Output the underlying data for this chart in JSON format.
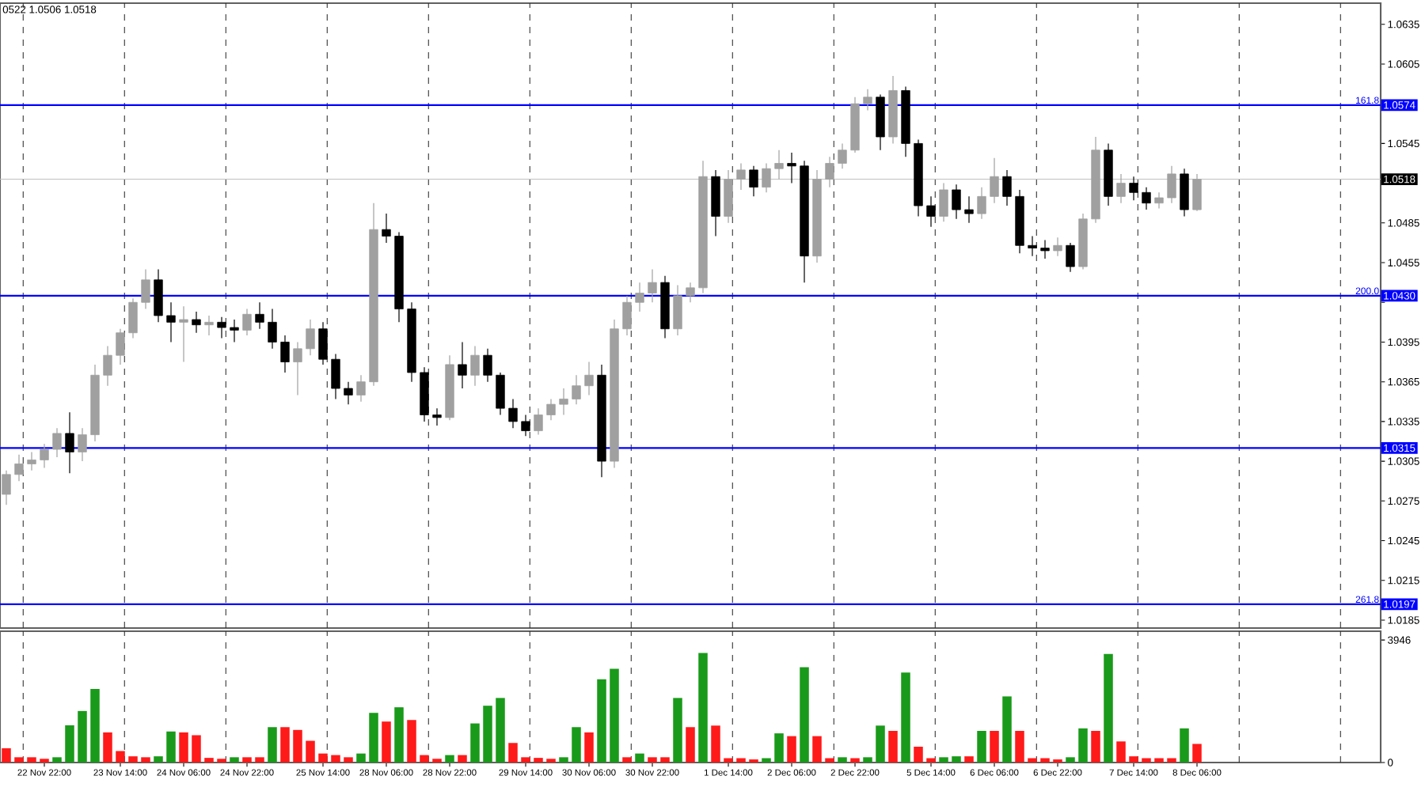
{
  "chart_data": [
    {
      "type": "candlestick",
      "categories": [
        null,
        null,
        null,
        null,
        null,
        null,
        null,
        null,
        null,
        null,
        null,
        null,
        null,
        null,
        null,
        null,
        null,
        null,
        null,
        null,
        null,
        null,
        null,
        null,
        null,
        null,
        null,
        null,
        null,
        null,
        null,
        null,
        null,
        null,
        null,
        null,
        null,
        null,
        null,
        null,
        null,
        null,
        null,
        null,
        null,
        null,
        null,
        null,
        null,
        null,
        null,
        null,
        null,
        null,
        null,
        null,
        null,
        null,
        null,
        null,
        null,
        null,
        null,
        null,
        null,
        null,
        null,
        null,
        null,
        null,
        null,
        null,
        null,
        null,
        null,
        null,
        null,
        null,
        null,
        null,
        null,
        null,
        null,
        null,
        null,
        null,
        null,
        null,
        null,
        null,
        null,
        null,
        null,
        null,
        null,
        null,
        null,
        null,
        null,
        null,
        null,
        null,
        null,
        null,
        null,
        null,
        null,
        null,
        null
      ],
      "ohlc": [
        [
          1.028,
          1.0298,
          1.0272,
          1.0295
        ],
        [
          1.0295,
          1.031,
          1.029,
          1.0303
        ],
        [
          1.0303,
          1.0312,
          1.0298,
          1.0306
        ],
        [
          1.0306,
          1.0318,
          1.03,
          1.0314
        ],
        [
          1.0314,
          1.033,
          1.0308,
          1.0326
        ],
        [
          1.0326,
          1.0342,
          1.0296,
          1.0312
        ],
        [
          1.0312,
          1.033,
          1.0305,
          1.0325
        ],
        [
          1.0325,
          1.0378,
          1.032,
          1.037
        ],
        [
          1.037,
          1.0392,
          1.0362,
          1.0385
        ],
        [
          1.0385,
          1.0405,
          1.0378,
          1.0402
        ],
        [
          1.0402,
          1.0428,
          1.0398,
          1.0425
        ],
        [
          1.0425,
          1.045,
          1.042,
          1.0442
        ],
        [
          1.0442,
          1.045,
          1.041,
          1.0415
        ],
        [
          1.0415,
          1.0425,
          1.0395,
          1.041
        ],
        [
          1.041,
          1.0422,
          1.038,
          1.0412
        ],
        [
          1.0412,
          1.0418,
          1.0402,
          1.0408
        ],
        [
          1.0408,
          1.0415,
          1.04,
          1.041
        ],
        [
          1.041,
          1.0414,
          1.0398,
          1.0406
        ],
        [
          1.0406,
          1.0412,
          1.0395,
          1.0404
        ],
        [
          1.0404,
          1.042,
          1.04,
          1.0416
        ],
        [
          1.0416,
          1.0425,
          1.0405,
          1.041
        ],
        [
          1.041,
          1.042,
          1.039,
          1.0395
        ],
        [
          1.0395,
          1.04,
          1.0372,
          1.038
        ],
        [
          1.038,
          1.0395,
          1.0355,
          1.039
        ],
        [
          1.039,
          1.0412,
          1.0385,
          1.0405
        ],
        [
          1.0405,
          1.041,
          1.0378,
          1.0382
        ],
        [
          1.0382,
          1.0386,
          1.0352,
          1.036
        ],
        [
          1.036,
          1.0365,
          1.0348,
          1.0355
        ],
        [
          1.0355,
          1.037,
          1.035,
          1.0365
        ],
        [
          1.0365,
          1.05,
          1.0362,
          1.048
        ],
        [
          1.048,
          1.0492,
          1.047,
          1.0475
        ],
        [
          1.0475,
          1.0478,
          1.041,
          1.042
        ],
        [
          1.042,
          1.0425,
          1.0365,
          1.0372
        ],
        [
          1.0372,
          1.0376,
          1.0335,
          1.034
        ],
        [
          1.034,
          1.0345,
          1.0332,
          1.0338
        ],
        [
          1.0338,
          1.0385,
          1.0336,
          1.0378
        ],
        [
          1.0378,
          1.0395,
          1.036,
          1.037
        ],
        [
          1.037,
          1.0392,
          1.0362,
          1.0385
        ],
        [
          1.0385,
          1.039,
          1.0365,
          1.037
        ],
        [
          1.037,
          1.0372,
          1.034,
          1.0345
        ],
        [
          1.0345,
          1.0352,
          1.033,
          1.0335
        ],
        [
          1.0335,
          1.034,
          1.0324,
          1.0328
        ],
        [
          1.0328,
          1.0345,
          1.0325,
          1.034
        ],
        [
          1.034,
          1.0352,
          1.0336,
          1.0348
        ],
        [
          1.0348,
          1.036,
          1.034,
          1.0352
        ],
        [
          1.0352,
          1.037,
          1.0348,
          1.0362
        ],
        [
          1.0362,
          1.038,
          1.0355,
          1.037
        ],
        [
          1.037,
          1.0378,
          1.0293,
          1.0305
        ],
        [
          1.0305,
          1.0412,
          1.03,
          1.0405
        ],
        [
          1.0405,
          1.043,
          1.04,
          1.0425
        ],
        [
          1.0425,
          1.044,
          1.0418,
          1.0432
        ],
        [
          1.0432,
          1.045,
          1.0425,
          1.044
        ],
        [
          1.044,
          1.0445,
          1.0398,
          1.0405
        ],
        [
          1.0405,
          1.0438,
          1.04,
          1.043
        ],
        [
          1.043,
          1.044,
          1.0425,
          1.0436
        ],
        [
          1.0436,
          1.0532,
          1.0432,
          1.052
        ],
        [
          1.052,
          1.0525,
          1.0475,
          1.049
        ],
        [
          1.049,
          1.0525,
          1.0485,
          1.0518
        ],
        [
          1.0518,
          1.053,
          1.051,
          1.0525
        ],
        [
          1.0525,
          1.0528,
          1.0505,
          1.0512
        ],
        [
          1.0512,
          1.053,
          1.0508,
          1.0526
        ],
        [
          1.0526,
          1.054,
          1.0518,
          1.053
        ],
        [
          1.053,
          1.0538,
          1.0515,
          1.0528
        ],
        [
          1.0528,
          1.0532,
          1.044,
          1.046
        ],
        [
          1.046,
          1.0525,
          1.0455,
          1.0518
        ],
        [
          1.0518,
          1.0535,
          1.0512,
          1.053
        ],
        [
          1.053,
          1.0545,
          1.0526,
          1.054
        ],
        [
          1.054,
          1.058,
          1.0538,
          1.0575
        ],
        [
          1.0575,
          1.0586,
          1.057,
          1.058
        ],
        [
          1.058,
          1.0582,
          1.054,
          1.055
        ],
        [
          1.055,
          1.0596,
          1.0545,
          1.0585
        ],
        [
          1.0585,
          1.0588,
          1.0535,
          1.0545
        ],
        [
          1.0545,
          1.0548,
          1.049,
          1.0498
        ],
        [
          1.0498,
          1.0505,
          1.0482,
          1.049
        ],
        [
          1.049,
          1.0515,
          1.0486,
          1.051
        ],
        [
          1.051,
          1.0514,
          1.0488,
          1.0495
        ],
        [
          1.0495,
          1.0505,
          1.0485,
          1.0492
        ],
        [
          1.0492,
          1.0512,
          1.0488,
          1.0505
        ],
        [
          1.0505,
          1.0534,
          1.05,
          1.052
        ],
        [
          1.052,
          1.0525,
          1.0498,
          1.0505
        ],
        [
          1.0505,
          1.051,
          1.0462,
          1.0468
        ],
        [
          1.0468,
          1.0475,
          1.046,
          1.0466
        ],
        [
          1.0466,
          1.0472,
          1.0458,
          1.0464
        ],
        [
          1.0464,
          1.0474,
          1.046,
          1.0468
        ],
        [
          1.0468,
          1.047,
          1.0448,
          1.0452
        ],
        [
          1.0452,
          1.0492,
          1.045,
          1.0488
        ],
        [
          1.0488,
          1.055,
          1.0485,
          1.054
        ],
        [
          1.054,
          1.0545,
          1.0498,
          1.0505
        ],
        [
          1.0505,
          1.0522,
          1.05,
          1.0515
        ],
        [
          1.0515,
          1.052,
          1.0502,
          1.0508
        ],
        [
          1.0508,
          1.0512,
          1.0495,
          1.05
        ],
        [
          1.05,
          1.0508,
          1.0496,
          1.0504
        ],
        [
          1.0504,
          1.0528,
          1.05,
          1.0522
        ],
        [
          1.0522,
          1.0526,
          1.049,
          1.0495
        ],
        [
          1.0495,
          1.0522,
          1.0494,
          1.0518
        ],
        null,
        null,
        null,
        null,
        null,
        null,
        null,
        null,
        null,
        null,
        null,
        null,
        null,
        null
      ],
      "ylim": [
        1.0179,
        1.0651
      ],
      "yticks": [
        1.0185,
        1.0215,
        1.0245,
        1.0275,
        1.0305,
        1.0335,
        1.0365,
        1.0395,
        {
          "value": 1.0425,
          "label": null
        },
        1.0455,
        1.0485,
        {
          "value": 1.0515,
          "label": null
        },
        1.0545,
        {
          "value": 1.0575,
          "label": null
        },
        1.0605,
        1.0635
      ],
      "tick_labels": "y",
      "grid": "x",
      "ref_lines": [
        {
          "axis": "y",
          "value": 1.0574,
          "label": "1.0574",
          "color": "#0000ff"
        },
        {
          "axis": "y",
          "value": 1.043,
          "label": "1.0430",
          "color": "#0000ff"
        },
        {
          "axis": "y",
          "value": 1.0315,
          "label": "1.0315",
          "color": "#0000ff"
        },
        {
          "axis": "y",
          "value": 1.0197,
          "label": "1.0197",
          "color": "#0000ff"
        },
        {
          "axis": "y",
          "value": 1.0518,
          "label": "1.0518",
          "color": "#c0c0c0"
        }
      ],
      "annotations": [
        "0522 1.0506 1.0518",
        {
          "text": "161.8",
          "y": 1.0574
        },
        {
          "text": "200.0",
          "y": 1.043
        },
        {
          "text": "261.8",
          "y": 1.0197
        }
      ]
    },
    {
      "type": "bar",
      "categories": [
        null,
        null,
        null,
        "22 Nov 22:00",
        null,
        null,
        null,
        null,
        null,
        "23 Nov 14:00",
        null,
        null,
        null,
        null,
        "24 Nov 06:00",
        null,
        null,
        null,
        null,
        "24 Nov 22:00",
        null,
        null,
        null,
        null,
        null,
        "25 Nov 14:00",
        null,
        null,
        null,
        null,
        "28 Nov 06:00",
        null,
        null,
        null,
        null,
        "28 Nov 22:00",
        null,
        null,
        null,
        null,
        null,
        "29 Nov 14:00",
        null,
        null,
        null,
        null,
        "30 Nov 06:00",
        null,
        null,
        null,
        null,
        "30 Nov 22:00",
        null,
        null,
        null,
        null,
        null,
        "1 Dec 14:00",
        null,
        null,
        null,
        null,
        "2 Dec 06:00",
        null,
        null,
        null,
        null,
        "2 Dec 22:00",
        null,
        null,
        null,
        null,
        null,
        "5 Dec 14:00",
        null,
        null,
        null,
        null,
        "6 Dec 06:00",
        null,
        null,
        null,
        null,
        "6 Dec 22:00",
        null,
        null,
        null,
        null,
        null,
        "7 Dec 14:00",
        null,
        null,
        null,
        null,
        "8 Dec 06:00",
        null,
        null,
        null,
        null,
        null,
        null,
        null,
        null,
        null,
        null,
        null,
        null,
        null,
        null
      ],
      "values": [
        460,
        170,
        170,
        120,
        170,
        1200,
        1660,
        2370,
        970,
        370,
        200,
        170,
        200,
        1000,
        970,
        880,
        150,
        120,
        170,
        170,
        170,
        1140,
        1140,
        1050,
        700,
        290,
        240,
        170,
        290,
        1600,
        1320,
        1780,
        1370,
        240,
        120,
        240,
        240,
        1260,
        1830,
        2080,
        630,
        170,
        150,
        120,
        170,
        1140,
        970,
        2680,
        3020,
        170,
        290,
        170,
        170,
        2080,
        1140,
        3530,
        1190,
        140,
        140,
        100,
        140,
        940,
        850,
        3070,
        850,
        140,
        170,
        140,
        170,
        1190,
        1020,
        2900,
        510,
        140,
        170,
        200,
        200,
        1020,
        1020,
        2130,
        1020,
        140,
        140,
        100,
        170,
        1100,
        1020,
        3500,
        680,
        200,
        140,
        140,
        140,
        1100,
        600,
        null,
        null,
        null,
        null,
        null,
        null,
        null,
        null,
        null,
        null,
        null,
        null,
        null,
        null
      ],
      "colors": [
        "#ff1a1a",
        "#ff1a1a",
        "#ff1a1a",
        "#ff1a1a",
        "#1a9a1a",
        "#1a9a1a",
        "#1a9a1a",
        "#1a9a1a",
        "#ff1a1a",
        "#ff1a1a",
        "#ff1a1a",
        "#ff1a1a",
        "#1a9a1a",
        "#1a9a1a",
        "#ff1a1a",
        "#ff1a1a",
        "#ff1a1a",
        "#ff1a1a",
        "#1a9a1a",
        "#ff1a1a",
        "#ff1a1a",
        "#1a9a1a",
        "#ff1a1a",
        "#ff1a1a",
        "#ff1a1a",
        "#ff1a1a",
        "#ff1a1a",
        "#ff1a1a",
        "#1a9a1a",
        "#1a9a1a",
        "#ff1a1a",
        "#1a9a1a",
        "#ff1a1a",
        "#ff1a1a",
        "#ff1a1a",
        "#1a9a1a",
        "#ff1a1a",
        "#1a9a1a",
        "#1a9a1a",
        "#1a9a1a",
        "#ff1a1a",
        "#ff1a1a",
        "#ff1a1a",
        "#ff1a1a",
        "#1a9a1a",
        "#1a9a1a",
        "#ff1a1a",
        "#1a9a1a",
        "#1a9a1a",
        "#ff1a1a",
        "#1a9a1a",
        "#ff1a1a",
        "#ff1a1a",
        "#1a9a1a",
        "#ff1a1a",
        "#1a9a1a",
        "#ff1a1a",
        "#ff1a1a",
        "#ff1a1a",
        "#ff1a1a",
        "#1a9a1a",
        "#1a9a1a",
        "#ff1a1a",
        "#1a9a1a",
        "#ff1a1a",
        "#ff1a1a",
        "#1a9a1a",
        "#ff1a1a",
        "#1a9a1a",
        "#1a9a1a",
        "#ff1a1a",
        "#1a9a1a",
        "#ff1a1a",
        "#ff1a1a",
        "#1a9a1a",
        "#1a9a1a",
        "#ff1a1a",
        "#1a9a1a",
        "#ff1a1a",
        "#1a9a1a",
        "#ff1a1a",
        "#ff1a1a",
        "#ff1a1a",
        "#ff1a1a",
        "#1a9a1a",
        "#1a9a1a",
        "#ff1a1a",
        "#1a9a1a",
        "#ff1a1a",
        "#ff1a1a",
        "#ff1a1a",
        "#ff1a1a",
        "#ff1a1a",
        "#1a9a1a",
        "#ff1a1a",
        null,
        null,
        null,
        null,
        null,
        null,
        null,
        null,
        null,
        null,
        null,
        null,
        null,
        null
      ],
      "ylim": [
        0,
        4230
      ],
      "yticks": [
        0,
        3946
      ],
      "grid": "x"
    }
  ]
}
